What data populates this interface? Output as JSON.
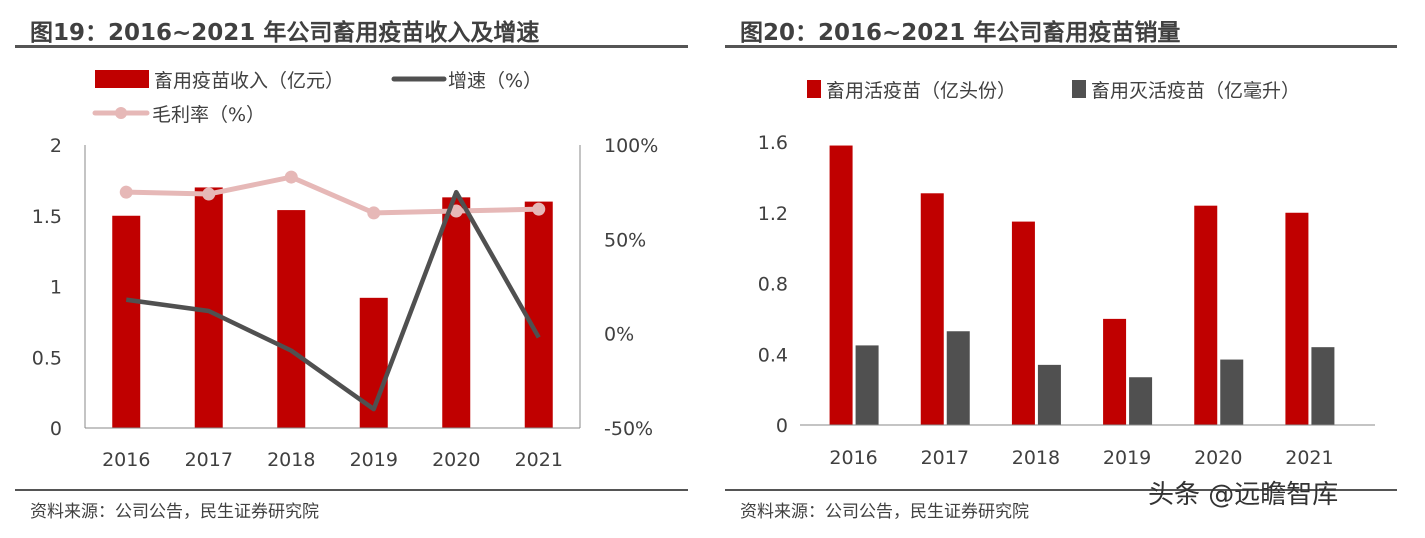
{
  "source_left": "资料来源：公司公告，民生证券研究院",
  "source_right": "资料来源：公司公告，民生证券研究院",
  "watermark": "头条 @远瞻智库",
  "chart_data": [
    {
      "type": "bar+line",
      "title": "图19：2016~2021 年公司畜用疫苗收入及增速",
      "categories": [
        "2016",
        "2017",
        "2018",
        "2019",
        "2020",
        "2021"
      ],
      "y_left": {
        "range": [
          0,
          2
        ],
        "ticks": [
          "0",
          "0.5",
          "1",
          "1.5",
          "2"
        ],
        "tick_values": [
          0,
          0.5,
          1,
          1.5,
          2
        ]
      },
      "y_right": {
        "range": [
          -50,
          100
        ],
        "ticks": [
          "-50%",
          "0%",
          "50%",
          "100%"
        ],
        "tick_values": [
          -50,
          0,
          50,
          100
        ]
      },
      "legend_position": "top",
      "grid": false,
      "series": [
        {
          "name": "畜用疫苗收入（亿元）",
          "kind": "bar",
          "axis": "left",
          "color": "#C00000",
          "values": [
            1.5,
            1.7,
            1.54,
            0.92,
            1.63,
            1.6
          ]
        },
        {
          "name": "增速（%）",
          "kind": "line",
          "axis": "right",
          "color": "#505050",
          "values": [
            18,
            12,
            -9,
            -40,
            75,
            -2
          ]
        },
        {
          "name": "毛利率（%）",
          "kind": "line-marker",
          "axis": "right",
          "color": "#E6B8B7",
          "values": [
            75,
            74,
            83,
            64,
            65,
            66
          ]
        }
      ]
    },
    {
      "type": "bar",
      "title": "图20：2016~2021 年公司畜用疫苗销量",
      "categories": [
        "2016",
        "2017",
        "2018",
        "2019",
        "2020",
        "2021"
      ],
      "y": {
        "range": [
          0,
          1.6
        ],
        "ticks": [
          "0",
          "0.4",
          "0.8",
          "1.2",
          "1.6"
        ],
        "tick_values": [
          0,
          0.4,
          0.8,
          1.2,
          1.6
        ]
      },
      "legend_position": "top",
      "grid": false,
      "series": [
        {
          "name": "畜用活疫苗（亿头份）",
          "color": "#C00000",
          "values": [
            1.58,
            1.31,
            1.15,
            0.6,
            1.24,
            1.2
          ]
        },
        {
          "name": "畜用灭活疫苗（亿毫升）",
          "color": "#505050",
          "values": [
            0.45,
            0.53,
            0.34,
            0.27,
            0.37,
            0.44
          ]
        }
      ]
    }
  ]
}
